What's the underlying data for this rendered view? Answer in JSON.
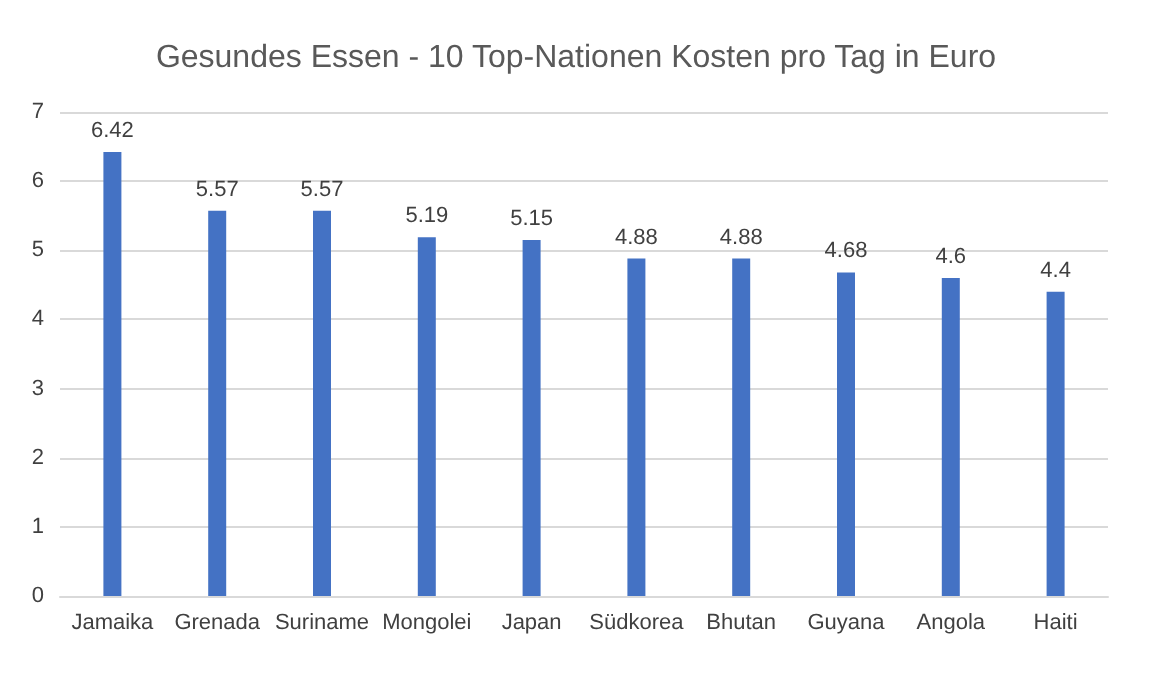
{
  "chart_data": {
    "type": "bar",
    "title": "Gesundes Essen - 10 Top-Nationen Kosten pro Tag in Euro",
    "categories": [
      "Jamaika",
      "Grenada",
      "Suriname",
      "Mongolei",
      "Japan",
      "Südkorea",
      "Bhutan",
      "Guyana",
      "Angola",
      "Haiti"
    ],
    "values": [
      6.42,
      5.57,
      5.57,
      5.19,
      5.15,
      4.88,
      4.88,
      4.68,
      4.6,
      4.4
    ],
    "color": "#4472c4",
    "ylim": [
      0,
      7
    ],
    "yticks": [
      0,
      1,
      2,
      3,
      4,
      5,
      6,
      7
    ],
    "grid": "y",
    "data_labels": true
  }
}
